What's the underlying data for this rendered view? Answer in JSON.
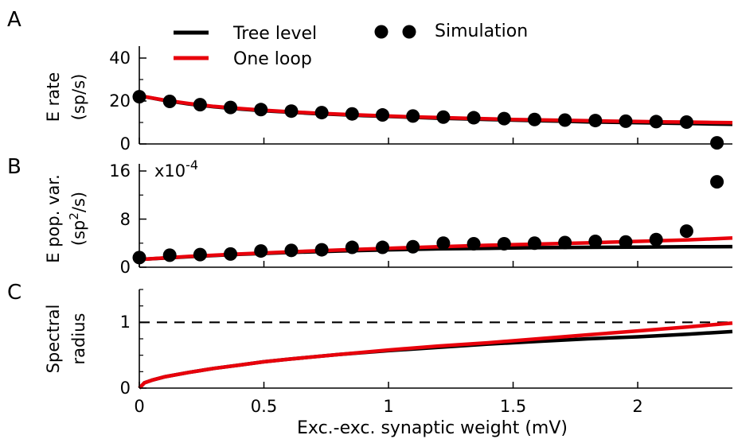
{
  "figure": {
    "panel_letters": [
      "A",
      "B",
      "C"
    ],
    "legend": {
      "tree": "Tree level",
      "loop": "One loop",
      "sim": "Simulation"
    },
    "xlabel": "Exc.-exc. synaptic weight (mV)",
    "x_tick_labels": [
      "0",
      "0.5",
      "1",
      "1.5",
      "2"
    ],
    "panel_a": {
      "ylabel_line1": "E rate",
      "ylabel_line2": "(sp/s)",
      "y_tick_labels": [
        "0",
        "20",
        "40"
      ]
    },
    "panel_b": {
      "ylabel_line1": "E pop. var.",
      "ylabel_line2_pre": "(sp",
      "ylabel_line2_sup": "2",
      "ylabel_line2_post": "/s)",
      "y_tick_labels": [
        "0",
        "8",
        "16"
      ],
      "exponent_base": "x10",
      "exponent_power": "-4"
    },
    "panel_c": {
      "ylabel_line1": "Spectral",
      "ylabel_line2": "radius",
      "y_tick_labels": [
        "0",
        "1"
      ]
    }
  },
  "chart_data": [
    {
      "panel": "A",
      "type": "line",
      "xlim": [
        0,
        2.38
      ],
      "ylim": [
        0,
        45
      ],
      "x_ticks": [
        0,
        0.5,
        1,
        1.5,
        2
      ],
      "y_ticks": [
        0,
        20,
        40
      ],
      "series": [
        {
          "name": "Tree level",
          "color": "#000000",
          "kind": "line",
          "x": [
            0,
            0.1,
            0.2,
            0.3,
            0.4,
            0.5,
            0.6,
            0.7,
            0.8,
            0.9,
            1.0,
            1.1,
            1.2,
            1.3,
            1.4,
            1.5,
            1.6,
            1.7,
            1.8,
            1.9,
            2.0,
            2.1,
            2.2,
            2.3,
            2.38
          ],
          "y": [
            22.5,
            20.3,
            18.6,
            17.3,
            16.3,
            15.5,
            14.8,
            14.2,
            13.7,
            13.2,
            12.8,
            12.4,
            12.0,
            11.7,
            11.4,
            11.1,
            10.8,
            10.6,
            10.3,
            10.1,
            9.9,
            9.7,
            9.5,
            9.3,
            9.2
          ]
        },
        {
          "name": "One loop",
          "color": "#e8000b",
          "kind": "line",
          "x": [
            0,
            0.1,
            0.2,
            0.3,
            0.4,
            0.5,
            0.6,
            0.7,
            0.8,
            0.9,
            1.0,
            1.1,
            1.2,
            1.3,
            1.4,
            1.5,
            1.6,
            1.7,
            1.8,
            1.9,
            2.0,
            2.1,
            2.2,
            2.3,
            2.38
          ],
          "y": [
            22.5,
            20.4,
            18.8,
            17.5,
            16.5,
            15.7,
            15.0,
            14.4,
            13.9,
            13.4,
            13.0,
            12.6,
            12.3,
            12.0,
            11.7,
            11.4,
            11.2,
            11.0,
            10.8,
            10.6,
            10.5,
            10.3,
            10.2,
            10.0,
            9.9
          ]
        },
        {
          "name": "Simulation",
          "color": "#000000",
          "kind": "scatter",
          "x": [
            0,
            0.122,
            0.244,
            0.366,
            0.488,
            0.61,
            0.732,
            0.854,
            0.976,
            1.098,
            1.22,
            1.342,
            1.464,
            1.586,
            1.708,
            1.83,
            1.952,
            2.074,
            2.196,
            2.318
          ],
          "y": [
            22.0,
            19.8,
            18.3,
            17.0,
            16.0,
            15.3,
            14.6,
            14.0,
            13.5,
            13.0,
            12.5,
            12.2,
            11.8,
            11.4,
            11.1,
            10.9,
            10.6,
            10.4,
            10.2,
            0.5
          ]
        }
      ]
    },
    {
      "panel": "B",
      "type": "line",
      "xlim": [
        0,
        2.38
      ],
      "ylim": [
        0,
        16
      ],
      "y_scale_factor": "x10^-4",
      "x_ticks": [
        0,
        0.5,
        1,
        1.5,
        2
      ],
      "y_ticks": [
        0,
        8,
        16
      ],
      "series": [
        {
          "name": "Tree level",
          "color": "#000000",
          "kind": "line",
          "x": [
            0,
            0.2,
            0.4,
            0.6,
            0.8,
            1.0,
            1.2,
            1.4,
            1.6,
            1.8,
            2.0,
            2.2,
            2.38
          ],
          "y": [
            1.3,
            1.75,
            2.15,
            2.45,
            2.7,
            2.9,
            3.05,
            3.15,
            3.25,
            3.3,
            3.35,
            3.4,
            3.42
          ]
        },
        {
          "name": "One loop",
          "color": "#e8000b",
          "kind": "line",
          "x": [
            0,
            0.2,
            0.4,
            0.6,
            0.8,
            1.0,
            1.2,
            1.4,
            1.6,
            1.8,
            2.0,
            2.2,
            2.38
          ],
          "y": [
            1.3,
            1.8,
            2.2,
            2.55,
            2.85,
            3.15,
            3.4,
            3.65,
            3.85,
            4.05,
            4.3,
            4.55,
            4.85
          ]
        },
        {
          "name": "Simulation",
          "color": "#000000",
          "kind": "scatter",
          "x": [
            0,
            0.122,
            0.244,
            0.366,
            0.488,
            0.61,
            0.732,
            0.854,
            0.976,
            1.098,
            1.22,
            1.342,
            1.464,
            1.586,
            1.708,
            1.83,
            1.952,
            2.074,
            2.196,
            2.318
          ],
          "y": [
            1.6,
            2.0,
            2.1,
            2.2,
            2.7,
            2.8,
            2.9,
            3.3,
            3.3,
            3.4,
            4.0,
            3.9,
            3.9,
            4.0,
            4.1,
            4.3,
            4.2,
            4.6,
            6.0,
            14.2
          ]
        }
      ]
    },
    {
      "panel": "C",
      "type": "line",
      "xlim": [
        0,
        2.38
      ],
      "ylim": [
        0,
        1.5
      ],
      "x_ticks": [
        0,
        0.5,
        1,
        1.5,
        2
      ],
      "y_ticks": [
        0,
        1
      ],
      "reference_line": {
        "y": 1,
        "style": "dashed"
      },
      "series": [
        {
          "name": "Tree level",
          "color": "#000000",
          "kind": "line",
          "x": [
            0,
            0.02,
            0.05,
            0.1,
            0.2,
            0.3,
            0.4,
            0.5,
            0.6,
            0.8,
            1.0,
            1.2,
            1.4,
            1.6,
            1.8,
            2.0,
            2.2,
            2.38
          ],
          "y": [
            0,
            0.08,
            0.12,
            0.17,
            0.24,
            0.3,
            0.35,
            0.4,
            0.44,
            0.51,
            0.57,
            0.62,
            0.67,
            0.71,
            0.75,
            0.78,
            0.82,
            0.86
          ]
        },
        {
          "name": "One loop",
          "color": "#e8000b",
          "kind": "line",
          "x": [
            0,
            0.02,
            0.05,
            0.1,
            0.2,
            0.3,
            0.4,
            0.5,
            0.6,
            0.8,
            1.0,
            1.2,
            1.4,
            1.6,
            1.8,
            2.0,
            2.2,
            2.38
          ],
          "y": [
            0,
            0.08,
            0.12,
            0.17,
            0.24,
            0.3,
            0.35,
            0.4,
            0.44,
            0.51,
            0.58,
            0.64,
            0.69,
            0.75,
            0.81,
            0.87,
            0.93,
            0.99
          ]
        }
      ]
    }
  ]
}
